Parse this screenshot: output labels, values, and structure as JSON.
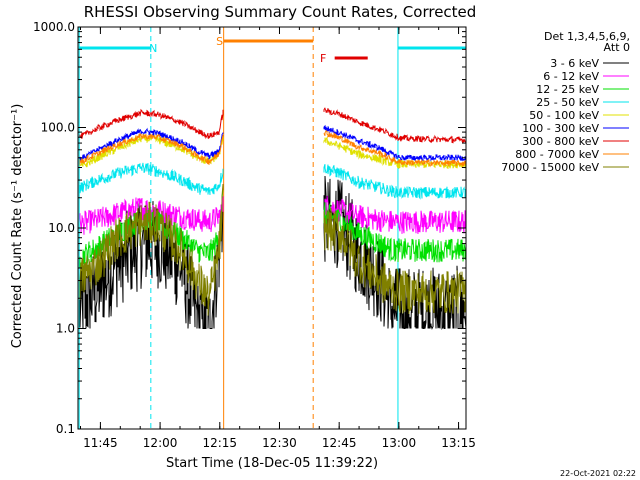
{
  "chart_data": {
    "type": "line",
    "title": "RHESSI Observing Summary Count Rates, Corrected",
    "xlabel": "Start Time (18-Dec-05 11:39:22)",
    "ylabel": "Corrected Count Rate (s⁻¹ detector⁻¹)",
    "y_scale": "log",
    "ylim": [
      0.1,
      1000.0
    ],
    "y_ticks": [
      "0.1",
      "1.0",
      "10.0",
      "100.0",
      "1000.0"
    ],
    "x_ticks": [
      "11:45",
      "12:00",
      "12:15",
      "12:30",
      "12:45",
      "13:00",
      "13:15"
    ],
    "x_tick_minutes": [
      5.63,
      20.63,
      35.63,
      50.63,
      65.63,
      80.63,
      95.63
    ],
    "xlim_minutes": [
      0,
      97.5
    ],
    "detectors_label": "Det 1,3,4,5,6,9,",
    "attenuator_label": "Att 0",
    "stamp": "22-Oct-2021 02:22",
    "colors": {
      "night": "#00e5ee",
      "saa": "#ff8000",
      "flare": "#e00000"
    },
    "flags": [
      {
        "label": "N",
        "kind": "night",
        "start": 0.3,
        "end": 18.3,
        "row": 0,
        "label_at": 18.9
      },
      {
        "label": "N",
        "kind": "night",
        "start": 80.4,
        "end": 97.5,
        "row": 0
      },
      {
        "label": "S",
        "kind": "saa",
        "start": 36.6,
        "end": 59.1,
        "row": 1,
        "label_at": 35.6
      },
      {
        "label": "F",
        "kind": "flare",
        "start": 64.5,
        "end": 72.8,
        "row": 2,
        "label_at": 61.6
      }
    ],
    "vlines": [
      {
        "x": 0.3,
        "kind": "night",
        "dash": false
      },
      {
        "x": 18.3,
        "kind": "night",
        "dash": true
      },
      {
        "x": 36.6,
        "kind": "saa",
        "dash": false
      },
      {
        "x": 59.1,
        "kind": "saa",
        "dash": true
      },
      {
        "x": 80.4,
        "kind": "night",
        "dash": false
      },
      {
        "x": 97.5,
        "kind": "night",
        "dash": true
      }
    ],
    "segments": [
      [
        0.3,
        36.6
      ],
      [
        61.6,
        97.5
      ]
    ],
    "series": [
      {
        "name": "3 - 6 keV",
        "color": "#000000",
        "noise": 0.45,
        "values": [
          [
            0.3,
            1.5
          ],
          [
            5,
            2.5
          ],
          [
            10,
            4.5
          ],
          [
            16,
            7
          ],
          [
            20,
            7
          ],
          [
            26,
            4
          ],
          [
            30,
            1.3
          ],
          [
            33,
            1
          ],
          [
            35.5,
            6
          ],
          [
            36.6,
            20
          ],
          [
            61.6,
            12
          ],
          [
            66,
            11
          ],
          [
            70,
            6
          ],
          [
            76,
            3
          ],
          [
            79,
            1.5
          ],
          [
            81,
            1.5
          ],
          [
            97.5,
            1.5
          ]
        ]
      },
      {
        "name": "6 - 12 keV",
        "color": "#ff00ff",
        "noise": 0.12,
        "values": [
          [
            0.3,
            11
          ],
          [
            5,
            12
          ],
          [
            10,
            14
          ],
          [
            16,
            16
          ],
          [
            20,
            15
          ],
          [
            26,
            13
          ],
          [
            30,
            12
          ],
          [
            33,
            11.5
          ],
          [
            35.5,
            13
          ],
          [
            36.6,
            17
          ],
          [
            61.6,
            17
          ],
          [
            66,
            15
          ],
          [
            70,
            13
          ],
          [
            76,
            12
          ],
          [
            79,
            11.5
          ],
          [
            81,
            11.5
          ],
          [
            97.5,
            11.5
          ]
        ]
      },
      {
        "name": "12 - 25 keV",
        "color": "#00e000",
        "noise": 0.12,
        "values": [
          [
            0.3,
            5
          ],
          [
            5,
            6.5
          ],
          [
            10,
            9
          ],
          [
            16,
            12
          ],
          [
            20,
            11
          ],
          [
            26,
            8
          ],
          [
            30,
            6
          ],
          [
            33,
            5.5
          ],
          [
            35.5,
            8
          ],
          [
            36.6,
            25
          ],
          [
            61.6,
            14
          ],
          [
            66,
            12
          ],
          [
            70,
            9
          ],
          [
            76,
            7
          ],
          [
            79,
            6
          ],
          [
            81,
            6
          ],
          [
            97.5,
            6
          ]
        ]
      },
      {
        "name": "25 - 50 keV",
        "color": "#00e5ee",
        "noise": 0.06,
        "values": [
          [
            0.3,
            25
          ],
          [
            5,
            30
          ],
          [
            10,
            35
          ],
          [
            16,
            40
          ],
          [
            20,
            37
          ],
          [
            26,
            30
          ],
          [
            30,
            25
          ],
          [
            33,
            23
          ],
          [
            35.5,
            27
          ],
          [
            36.6,
            40
          ],
          [
            61.6,
            40
          ],
          [
            66,
            35
          ],
          [
            70,
            29
          ],
          [
            76,
            25
          ],
          [
            79,
            23
          ],
          [
            81,
            22.5
          ],
          [
            97.5,
            22.5
          ]
        ]
      },
      {
        "name": "50 - 100 keV",
        "color": "#e0e000",
        "noise": 0.04,
        "values": [
          [
            0.3,
            40
          ],
          [
            5,
            50
          ],
          [
            10,
            62
          ],
          [
            16,
            78
          ],
          [
            20,
            76
          ],
          [
            26,
            62
          ],
          [
            30,
            50
          ],
          [
            33,
            45
          ],
          [
            35.5,
            55
          ],
          [
            36.6,
            85
          ],
          [
            61.6,
            75
          ],
          [
            66,
            65
          ],
          [
            70,
            55
          ],
          [
            76,
            48
          ],
          [
            79,
            44
          ],
          [
            81,
            43
          ],
          [
            97.5,
            43
          ]
        ]
      },
      {
        "name": "100 - 300 keV",
        "color": "#0000ff",
        "noise": 0.03,
        "values": [
          [
            0.3,
            48
          ],
          [
            5,
            60
          ],
          [
            10,
            75
          ],
          [
            16,
            92
          ],
          [
            20,
            88
          ],
          [
            26,
            72
          ],
          [
            30,
            58
          ],
          [
            33,
            52
          ],
          [
            35.5,
            58
          ],
          [
            36.6,
            100
          ],
          [
            61.6,
            100
          ],
          [
            66,
            88
          ],
          [
            70,
            75
          ],
          [
            76,
            62
          ],
          [
            79,
            54
          ],
          [
            81,
            50
          ],
          [
            97.5,
            50
          ]
        ]
      },
      {
        "name": "300 - 800 keV",
        "color": "#e00000",
        "noise": 0.03,
        "values": [
          [
            0.3,
            80
          ],
          [
            5,
            98
          ],
          [
            10,
            118
          ],
          [
            16,
            140
          ],
          [
            20,
            135
          ],
          [
            26,
            112
          ],
          [
            30,
            92
          ],
          [
            33,
            82
          ],
          [
            35.5,
            90
          ],
          [
            36.6,
            155
          ],
          [
            61.6,
            150
          ],
          [
            66,
            135
          ],
          [
            70,
            115
          ],
          [
            76,
            95
          ],
          [
            79,
            85
          ],
          [
            81,
            78
          ],
          [
            97.5,
            75
          ]
        ]
      },
      {
        "name": "800 - 7000 keV",
        "color": "#ff8000",
        "noise": 0.03,
        "values": [
          [
            0.3,
            45
          ],
          [
            5,
            55
          ],
          [
            10,
            68
          ],
          [
            16,
            82
          ],
          [
            20,
            80
          ],
          [
            26,
            66
          ],
          [
            30,
            52
          ],
          [
            33,
            46
          ],
          [
            35.5,
            55
          ],
          [
            36.6,
            95
          ],
          [
            61.6,
            90
          ],
          [
            66,
            78
          ],
          [
            70,
            65
          ],
          [
            76,
            55
          ],
          [
            79,
            48
          ],
          [
            81,
            45
          ],
          [
            97.5,
            44
          ]
        ]
      },
      {
        "name": "7000 - 15000 keV",
        "color": "#808000",
        "noise": 0.22,
        "values": [
          [
            0.3,
            3
          ],
          [
            5,
            4.5
          ],
          [
            10,
            8
          ],
          [
            16,
            11
          ],
          [
            20,
            11
          ],
          [
            26,
            6
          ],
          [
            30,
            3
          ],
          [
            33,
            2
          ],
          [
            35.5,
            6
          ],
          [
            36.6,
            22
          ],
          [
            61.6,
            10
          ],
          [
            66,
            9
          ],
          [
            70,
            5
          ],
          [
            76,
            3
          ],
          [
            79,
            2.5
          ],
          [
            81,
            2.3
          ],
          [
            97.5,
            2.3
          ]
        ]
      }
    ]
  }
}
